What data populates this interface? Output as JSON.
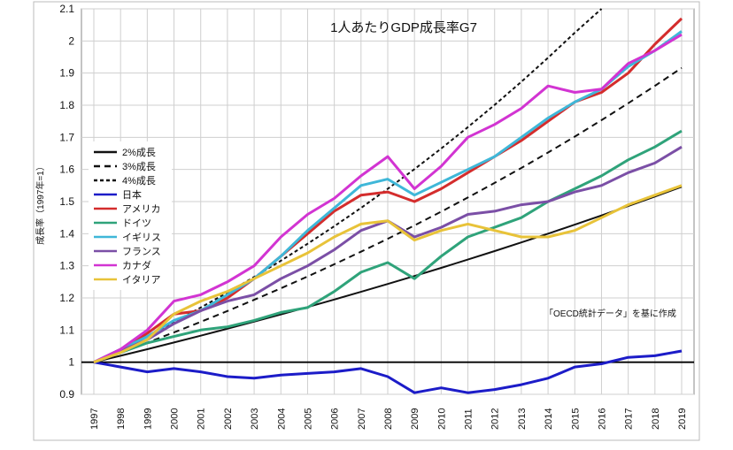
{
  "chart_data": {
    "type": "line",
    "title": "1人あたりGDP成長率G7",
    "ylabel": "成長率（1997年=1）",
    "xlabel": "",
    "source_note": "「OECD統計データ」を基に作成",
    "ylim": [
      0.9,
      2.1
    ],
    "y_ticks": [
      "0.9",
      "1",
      "1.1",
      "1.2",
      "1.3",
      "1.4",
      "1.5",
      "1.6",
      "1.7",
      "1.8",
      "1.9",
      "2",
      "2.1"
    ],
    "categories": [
      "1997",
      "1998",
      "1999",
      "2000",
      "2001",
      "2002",
      "2003",
      "2004",
      "2005",
      "2006",
      "2007",
      "2008",
      "2009",
      "2010",
      "2011",
      "2012",
      "2013",
      "2014",
      "2015",
      "2016",
      "2017",
      "2018",
      "2019"
    ],
    "grid": true,
    "legend_position": "left",
    "series": [
      {
        "name": "2%成長",
        "color": "#111111",
        "dash": "solid",
        "values": [
          1.0,
          1.02,
          1.0404,
          1.0612,
          1.0824,
          1.1041,
          1.1262,
          1.1487,
          1.1717,
          1.1951,
          1.219,
          1.2434,
          1.2682,
          1.2936,
          1.3195,
          1.3459,
          1.3728,
          1.4002,
          1.4282,
          1.4568,
          1.4859,
          1.5157,
          1.546
        ]
      },
      {
        "name": "3%成長",
        "color": "#111111",
        "dash": "dashed",
        "values": [
          1.0,
          1.03,
          1.0609,
          1.0927,
          1.1255,
          1.1593,
          1.1941,
          1.2299,
          1.2668,
          1.3048,
          1.3439,
          1.3842,
          1.4258,
          1.4685,
          1.5126,
          1.558,
          1.6047,
          1.6528,
          1.7024,
          1.7535,
          1.8061,
          1.8603,
          1.9161
        ]
      },
      {
        "name": "4%成長",
        "color": "#111111",
        "dash": "dotted",
        "values": [
          1.0,
          1.04,
          1.0816,
          1.1249,
          1.1699,
          1.2167,
          1.2653,
          1.3159,
          1.3686,
          1.4233,
          1.4802,
          1.5395,
          1.601,
          1.6651,
          1.7317,
          1.8009,
          1.873,
          1.9479,
          2.0258,
          2.1068,
          null,
          null,
          null
        ]
      },
      {
        "name": "日本",
        "color": "#1c1cc8",
        "dash": "solid",
        "values": [
          1.0,
          0.985,
          0.97,
          0.98,
          0.97,
          0.955,
          0.95,
          0.96,
          0.965,
          0.97,
          0.98,
          0.955,
          0.905,
          0.92,
          0.905,
          0.915,
          0.93,
          0.95,
          0.985,
          0.995,
          1.015,
          1.02,
          1.035
        ]
      },
      {
        "name": "アメリカ",
        "color": "#d42d2d",
        "dash": "solid",
        "values": [
          1.0,
          1.04,
          1.09,
          1.15,
          1.16,
          1.2,
          1.26,
          1.33,
          1.4,
          1.47,
          1.52,
          1.53,
          1.5,
          1.54,
          1.59,
          1.64,
          1.69,
          1.75,
          1.81,
          1.84,
          1.9,
          1.99,
          2.07
        ]
      },
      {
        "name": "ドイツ",
        "color": "#2fa37a",
        "dash": "solid",
        "values": [
          1.0,
          1.03,
          1.06,
          1.08,
          1.1,
          1.11,
          1.13,
          1.155,
          1.17,
          1.22,
          1.28,
          1.31,
          1.26,
          1.33,
          1.39,
          1.42,
          1.45,
          1.5,
          1.54,
          1.58,
          1.63,
          1.67,
          1.72
        ]
      },
      {
        "name": "イギリス",
        "color": "#3fb7d8",
        "dash": "solid",
        "values": [
          1.0,
          1.04,
          1.08,
          1.13,
          1.16,
          1.21,
          1.26,
          1.33,
          1.41,
          1.48,
          1.55,
          1.57,
          1.52,
          1.56,
          1.6,
          1.64,
          1.7,
          1.76,
          1.81,
          1.85,
          1.92,
          1.97,
          2.03
        ]
      },
      {
        "name": "フランス",
        "color": "#7b4fa6",
        "dash": "solid",
        "values": [
          1.0,
          1.035,
          1.07,
          1.12,
          1.16,
          1.19,
          1.21,
          1.26,
          1.3,
          1.35,
          1.41,
          1.44,
          1.39,
          1.42,
          1.46,
          1.47,
          1.49,
          1.5,
          1.53,
          1.55,
          1.59,
          1.62,
          1.67
        ]
      },
      {
        "name": "カナダ",
        "color": "#d234d2",
        "dash": "solid",
        "values": [
          1.0,
          1.04,
          1.1,
          1.19,
          1.21,
          1.25,
          1.3,
          1.39,
          1.46,
          1.51,
          1.58,
          1.64,
          1.54,
          1.61,
          1.7,
          1.74,
          1.79,
          1.86,
          1.84,
          1.85,
          1.93,
          1.97,
          2.02
        ]
      },
      {
        "name": "イタリア",
        "color": "#e8c339",
        "dash": "solid",
        "values": [
          1.0,
          1.03,
          1.07,
          1.15,
          1.19,
          1.22,
          1.26,
          1.3,
          1.34,
          1.39,
          1.43,
          1.44,
          1.38,
          1.41,
          1.43,
          1.41,
          1.39,
          1.39,
          1.41,
          1.45,
          1.49,
          1.52,
          1.55
        ]
      }
    ]
  }
}
